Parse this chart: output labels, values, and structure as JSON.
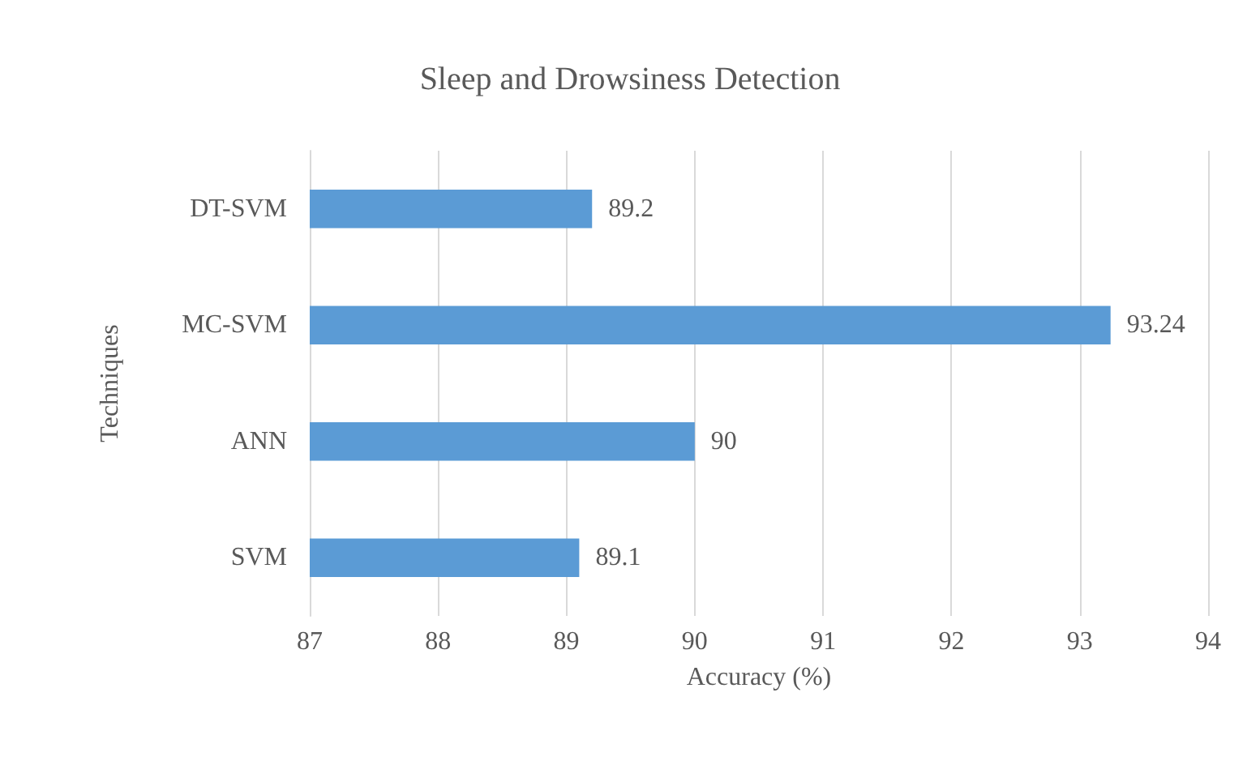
{
  "chart_data": {
    "type": "bar",
    "orientation": "horizontal",
    "title": "Sleep and Drowsiness Detection",
    "xlabel": "Accuracy (%)",
    "ylabel": "Techniques",
    "categories": [
      "DT-SVM",
      "MC-SVM",
      "ANN",
      "SVM"
    ],
    "values": [
      89.2,
      93.24,
      90,
      89.1
    ],
    "color": "#5b9bd5",
    "xlim": [
      87,
      94
    ],
    "xticks": [
      87,
      88,
      89,
      90,
      91,
      92,
      93,
      94
    ],
    "grid": "x",
    "data_labels": true
  }
}
